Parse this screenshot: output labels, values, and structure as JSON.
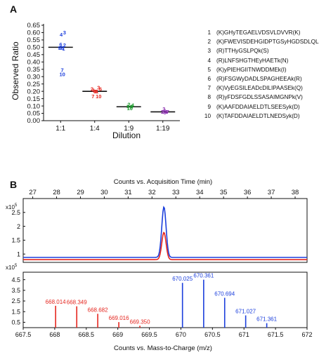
{
  "chart_data": [
    {
      "panel": "A",
      "type": "scatter",
      "xlabel": "Dilution",
      "ylabel": "Observed Ratio",
      "ylim": [
        0.0,
        0.65
      ],
      "yticks": [
        0.0,
        0.05,
        0.1,
        0.15,
        0.2,
        0.25,
        0.3,
        0.35,
        0.4,
        0.45,
        0.5,
        0.55,
        0.6,
        0.65
      ],
      "ytick_labels": [
        "0.00",
        "0.05",
        "0.10",
        "0.15",
        "0.20",
        "0.25",
        "0.30",
        "0.35",
        "0.40",
        "0.45",
        "0.50",
        "0.55",
        "0.60",
        "0.65"
      ],
      "categories": [
        "1:1",
        "1:4",
        "1:9",
        "1:19"
      ],
      "series": [
        {
          "category": "1:1",
          "color": "#1c3fdc",
          "mean": 0.5,
          "points": [
            {
              "label": "1",
              "x": 0.25,
              "y": 0.49
            },
            {
              "label": "2",
              "x": 0.3,
              "y": 0.515
            },
            {
              "label": "3",
              "x": 0.3,
              "y": 0.6
            },
            {
              "label": "4",
              "x": 0.12,
              "y": 0.585
            },
            {
              "label": "5",
              "x": 0.1,
              "y": 0.495
            },
            {
              "label": "6",
              "x": 0.1,
              "y": 0.52
            },
            {
              "label": "7",
              "x": 0.18,
              "y": 0.345
            },
            {
              "label": "8",
              "x": 0.2,
              "y": 0.495
            },
            {
              "label": "9",
              "x": 0.03,
              "y": 0.495
            },
            {
              "label": "10",
              "x": 0.18,
              "y": 0.315
            }
          ]
        },
        {
          "category": "1:4",
          "color": "#e5261f",
          "mean": 0.2,
          "points": [
            {
              "label": "1",
              "x": 0.22,
              "y": 0.2
            },
            {
              "label": "2",
              "x": -0.05,
              "y": 0.215
            },
            {
              "label": "3",
              "x": 0.3,
              "y": 0.225
            },
            {
              "label": "4",
              "x": 0.02,
              "y": 0.205
            },
            {
              "label": "5",
              "x": 0.18,
              "y": 0.2
            },
            {
              "label": "6",
              "x": 0.4,
              "y": 0.215
            },
            {
              "label": "7",
              "x": 0.0,
              "y": 0.165
            },
            {
              "label": "8",
              "x": 0.1,
              "y": 0.2
            },
            {
              "label": "9",
              "x": 0.12,
              "y": 0.2
            },
            {
              "label": "10",
              "x": 0.3,
              "y": 0.165
            }
          ]
        },
        {
          "category": "1:9",
          "color": "#1f9a2f",
          "mean": 0.095,
          "points": [
            {
              "label": "2",
              "x": 0.1,
              "y": 0.11
            },
            {
              "label": "4",
              "x": 0.3,
              "y": 0.105
            },
            {
              "label": "10",
              "x": 0.15,
              "y": 0.085
            },
            {
              "label": "1",
              "x": 0.22,
              "y": 0.095
            },
            {
              "label": "5",
              "x": 0.05,
              "y": 0.095
            },
            {
              "label": "6",
              "x": 0.25,
              "y": 0.095
            }
          ]
        },
        {
          "category": "1:19",
          "color": "#8b2fb0",
          "mean": 0.06,
          "points": [
            {
              "label": "3",
              "x": 0.15,
              "y": 0.08
            },
            {
              "label": "6",
              "x": 0.2,
              "y": 0.065
            },
            {
              "label": "1",
              "x": 0.05,
              "y": 0.06
            },
            {
              "label": "2",
              "x": 0.1,
              "y": 0.06
            },
            {
              "label": "4",
              "x": 0.25,
              "y": 0.06
            },
            {
              "label": "5",
              "x": 0.3,
              "y": 0.06
            },
            {
              "label": "7",
              "x": 0.35,
              "y": 0.06
            },
            {
              "label": "9",
              "x": 0.2,
              "y": 0.055
            }
          ]
        }
      ],
      "legend": [
        {
          "num": "1",
          "text": "(K)GHyTEGAELVDSVLDVVR(K)"
        },
        {
          "num": "2",
          "text": "(K)FWEVISDEHGIDPTGSyHGDSDLQLER(I)"
        },
        {
          "num": "3",
          "text": "(R)TTHyGSLPQk(S)"
        },
        {
          "num": "4",
          "text": "(R)LNFSHGTHEyHAETk(N)"
        },
        {
          "num": "5",
          "text": "(K)yPIEHGIITNWDDMEk(I)"
        },
        {
          "num": "6",
          "text": "(R)FSGWyDADLSPAGHEEAk(R)"
        },
        {
          "num": "7",
          "text": "(K)VyEGSILEADcDILIPAASEk(Q)"
        },
        {
          "num": "8",
          "text": "(R)yFDSFGDLSSASAIMGNPk(V)"
        },
        {
          "num": "9",
          "text": "(K)AAFDDAIAELDTLSEESyk(D)"
        },
        {
          "num": "10",
          "text": "(K)TAFDDAIAELDTLNEDSyk(D)"
        }
      ]
    },
    {
      "panel": "B-top",
      "type": "line",
      "title": "Counts vs. Acquisition Time (min)",
      "xlim": [
        26.6,
        38.5
      ],
      "xticks": [
        27,
        28,
        29,
        30,
        31,
        32,
        33,
        34,
        35,
        36,
        37,
        38
      ],
      "ylim": [
        0.7,
        3.0
      ],
      "yticks": [
        1,
        1.5,
        2,
        2.5
      ],
      "ytick_labels": [
        "1",
        "1.5",
        "2",
        "2.5"
      ],
      "yscale_label": "x10",
      "yscale_exp": "5",
      "series": [
        {
          "color": "#1c3fdc",
          "baseline": 0.88,
          "peak_x": 32.5,
          "peak_y": 2.7,
          "peak_width": 0.09
        },
        {
          "color": "#e5261f",
          "baseline": 0.8,
          "peak_x": 32.5,
          "peak_y": 1.78,
          "peak_width": 0.09
        }
      ]
    },
    {
      "panel": "B-bottom",
      "type": "bar",
      "xlabel": "Counts vs. Mass-to-Charge (m/z)",
      "xlim": [
        667.5,
        672.0
      ],
      "xticks": [
        667.5,
        668,
        668.5,
        669,
        669.5,
        670,
        670.5,
        671,
        671.5,
        672
      ],
      "xtick_labels": [
        "667.5",
        "668",
        "668.5",
        "669",
        "669.5",
        "670",
        "670.5",
        "671",
        "671.5",
        "672"
      ],
      "ylim": [
        0,
        5.2
      ],
      "yticks": [
        0.5,
        1,
        1.5,
        2,
        2.5,
        3,
        3.5,
        4,
        4.5
      ],
      "ytick_labels": [
        "0.5",
        "1",
        "1.5",
        "2",
        "2.5",
        "3",
        "3.5",
        "4",
        "4.5"
      ],
      "yscale_label": "x10",
      "yscale_exp": "5",
      "peaks": [
        {
          "mz": 668.014,
          "label": "668.014",
          "value": 2.05,
          "color": "#e5261f"
        },
        {
          "mz": 668.349,
          "label": "668.349",
          "value": 2.0,
          "color": "#e5261f"
        },
        {
          "mz": 668.682,
          "label": "668.682",
          "value": 1.3,
          "color": "#e5261f"
        },
        {
          "mz": 669.016,
          "label": "669.016",
          "value": 0.52,
          "color": "#e5261f"
        },
        {
          "mz": 669.35,
          "label": "669.350",
          "value": 0.18,
          "color": "#e5261f"
        },
        {
          "mz": 670.025,
          "label": "670.025",
          "value": 4.2,
          "color": "#1c3fdc"
        },
        {
          "mz": 670.361,
          "label": "670.361",
          "value": 4.5,
          "color": "#1c3fdc"
        },
        {
          "mz": 670.694,
          "label": "670.694",
          "value": 2.8,
          "color": "#1c3fdc"
        },
        {
          "mz": 671.027,
          "label": "671.027",
          "value": 1.15,
          "color": "#1c3fdc"
        },
        {
          "mz": 671.361,
          "label": "671.361",
          "value": 0.42,
          "color": "#1c3fdc"
        }
      ]
    }
  ]
}
